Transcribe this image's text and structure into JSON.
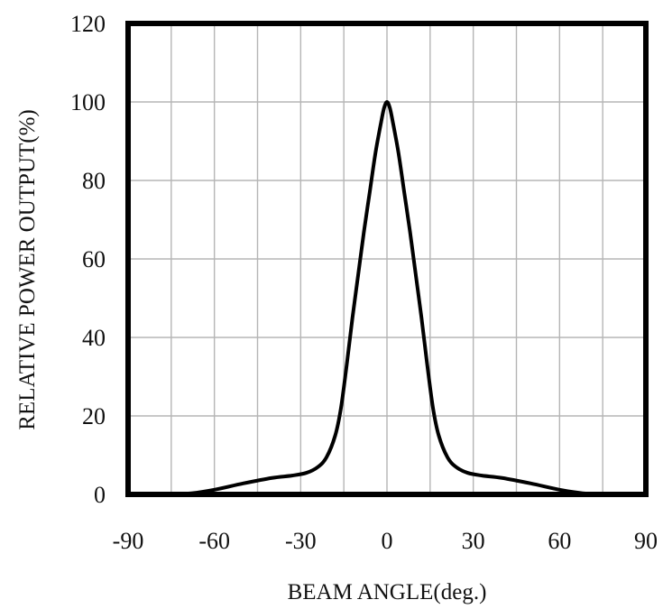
{
  "chart_data": {
    "type": "line",
    "title": "",
    "xlabel": "BEAM ANGLE(deg.)",
    "ylabel": "RELATIVE POWER OUTPUT(%)",
    "xlim": [
      -90,
      90
    ],
    "ylim": [
      0,
      120
    ],
    "xticks": [
      -90,
      -60,
      -30,
      0,
      30,
      60,
      90
    ],
    "yticks": [
      0,
      20,
      40,
      60,
      80,
      100,
      120
    ],
    "x_gridlines": [
      -75,
      -60,
      -45,
      -30,
      -15,
      0,
      15,
      30,
      45,
      60,
      75
    ],
    "y_gridlines": [
      20,
      40,
      60,
      80,
      100
    ],
    "grid": true,
    "legend": "none",
    "series": [
      {
        "x": [
          -75,
          -68,
          -60,
          -50,
          -40,
          -33,
          -28,
          -24,
          -21,
          -18,
          -16,
          -14,
          -12,
          -10,
          -8,
          -6,
          -4,
          -2,
          -1,
          0,
          1,
          2,
          4,
          6,
          8,
          10,
          12,
          14,
          16,
          18,
          21,
          24,
          28,
          33,
          40,
          50,
          60,
          68,
          75
        ],
        "y": [
          0,
          0.3,
          1.2,
          2.8,
          4.2,
          4.8,
          5.5,
          7,
          9.5,
          15,
          22,
          33,
          45,
          56,
          67,
          77,
          87,
          95,
          98.5,
          100,
          98.5,
          95,
          87,
          77,
          67,
          56,
          45,
          33,
          22,
          15,
          9.5,
          7,
          5.5,
          4.8,
          4.2,
          2.8,
          1.2,
          0.3,
          0
        ],
        "color": "#000000"
      }
    ]
  }
}
